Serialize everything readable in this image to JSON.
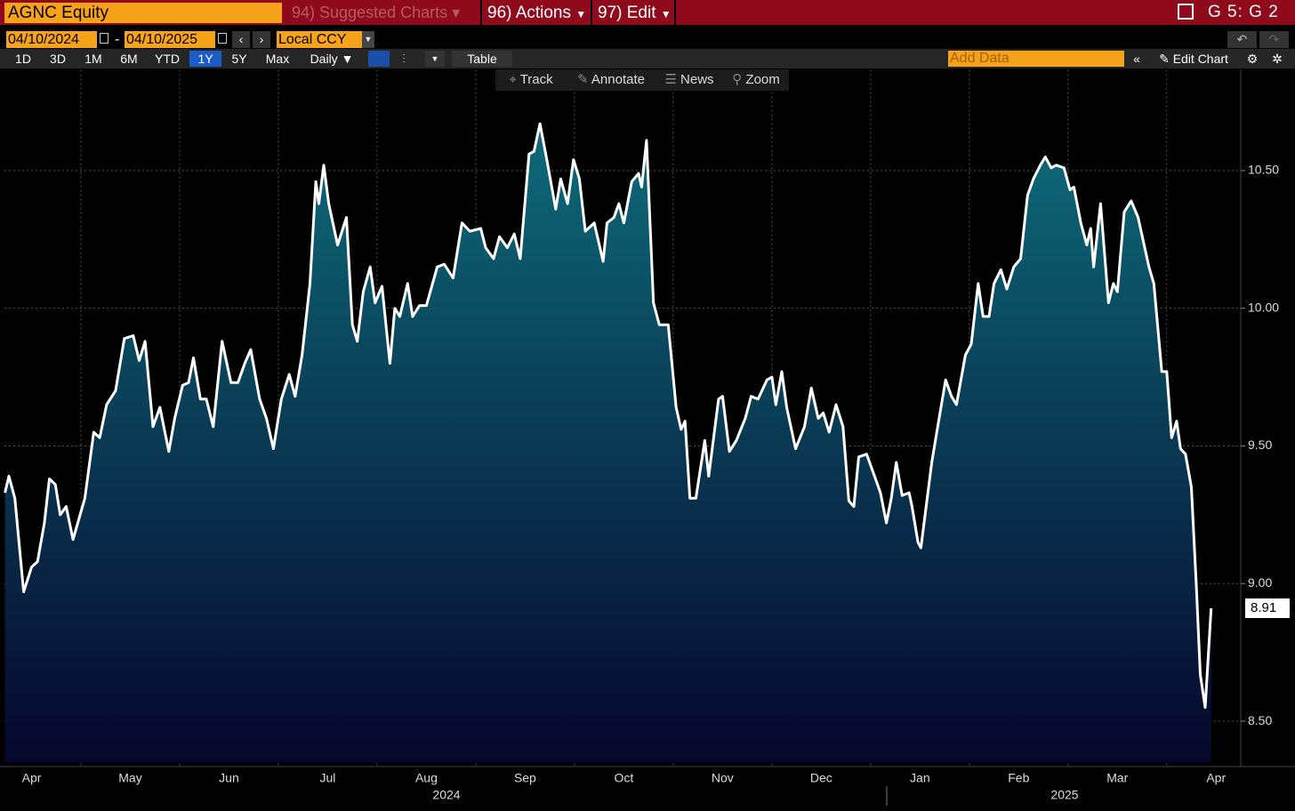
{
  "header": {
    "security": "AGNC Equity",
    "menu": [
      "94) Suggested Charts",
      "96) Actions",
      "97) Edit"
    ],
    "page_id": "G 5: G 2"
  },
  "controls": {
    "start_date": "04/10/2024",
    "separator": "-",
    "end_date": "04/10/2025",
    "currency": "Local CCY",
    "periods": [
      "1D",
      "3D",
      "1M",
      "6M",
      "YTD",
      "1Y",
      "5Y",
      "Max"
    ],
    "selected_period": "1Y",
    "frequency": "Daily",
    "table": "Table",
    "add_data": "Add Data",
    "edit_chart": "Edit Chart"
  },
  "tools": [
    "Track",
    "Annotate",
    "News",
    "Zoom"
  ],
  "chart_data": {
    "type": "area",
    "color": "#ffffff",
    "fill_top": "#0d6b79",
    "fill_bottom": "#06062c",
    "grid": true,
    "x": [
      0.23,
      0.27,
      0.33,
      0.42,
      0.5,
      0.56,
      0.63,
      0.68,
      0.74,
      0.79,
      0.85,
      0.92,
      1.04,
      1.13,
      1.19,
      1.26,
      1.35,
      1.44,
      1.53,
      1.59,
      1.65,
      1.73,
      1.8,
      1.89,
      1.95,
      2.03,
      2.09,
      2.14,
      2.21,
      2.27,
      2.34,
      2.43,
      2.52,
      2.59,
      2.66,
      2.72,
      2.81,
      2.88,
      2.95,
      3.03,
      3.11,
      3.17,
      3.24,
      3.32,
      3.38,
      3.41,
      3.46,
      3.51,
      3.6,
      3.69,
      3.75,
      3.8,
      3.86,
      3.93,
      3.98,
      4.05,
      4.13,
      4.18,
      4.23,
      4.31,
      4.36,
      4.43,
      4.5,
      4.61,
      4.68,
      4.77,
      4.86,
      4.94,
      5.05,
      5.1,
      5.18,
      5.24,
      5.32,
      5.39,
      5.45,
      5.54,
      5.59,
      5.65,
      5.72,
      5.81,
      5.86,
      5.93,
      5.99,
      6.05,
      6.11,
      6.2,
      6.29,
      6.33,
      6.4,
      6.45,
      6.5,
      6.58,
      6.65,
      6.68,
      6.73,
      6.8,
      6.86,
      6.95,
      7.03,
      7.08,
      7.12,
      7.17,
      7.23,
      7.32,
      7.36,
      7.46,
      7.5,
      7.57,
      7.64,
      7.73,
      7.79,
      7.86,
      7.95,
      8.0,
      8.04,
      8.1,
      8.15,
      8.24,
      8.33,
      8.4,
      8.47,
      8.52,
      8.58,
      8.65,
      8.72,
      8.78,
      8.83,
      8.88,
      8.96,
      9.05,
      9.1,
      9.16,
      9.21,
      9.26,
      9.32,
      9.39,
      9.42,
      9.48,
      9.51,
      9.62,
      9.68,
      9.76,
      9.82,
      9.87,
      9.96,
      10.02,
      10.09,
      10.14,
      10.2,
      10.25,
      10.32,
      10.38,
      10.45,
      10.52,
      10.59,
      10.65,
      10.72,
      10.77,
      10.83,
      10.88,
      10.96,
      11.02,
      11.06,
      11.13,
      11.19,
      11.23,
      11.26,
      11.33,
      11.41,
      11.46,
      11.5,
      11.57,
      11.64,
      11.71,
      11.82,
      11.87,
      11.95,
      12.0,
      12.05,
      12.1,
      12.14,
      12.19,
      12.25,
      12.3,
      12.34,
      12.39,
      12.45
    ],
    "values": [
      9.33,
      9.39,
      9.31,
      8.97,
      9.06,
      9.08,
      9.22,
      9.38,
      9.36,
      9.25,
      9.28,
      9.16,
      9.31,
      9.55,
      9.53,
      9.65,
      9.7,
      9.89,
      9.9,
      9.81,
      9.88,
      9.57,
      9.64,
      9.48,
      9.6,
      9.72,
      9.73,
      9.82,
      9.67,
      9.67,
      9.57,
      9.88,
      9.73,
      9.73,
      9.8,
      9.85,
      9.67,
      9.6,
      9.49,
      9.67,
      9.76,
      9.68,
      9.83,
      10.09,
      10.46,
      10.38,
      10.52,
      10.38,
      10.23,
      10.33,
      9.94,
      9.88,
      10.06,
      10.15,
      10.02,
      10.08,
      9.8,
      10.0,
      9.97,
      10.09,
      9.97,
      10.01,
      10.01,
      10.15,
      10.16,
      10.11,
      10.31,
      10.28,
      10.29,
      10.22,
      10.18,
      10.26,
      10.22,
      10.27,
      10.18,
      10.56,
      10.57,
      10.67,
      10.54,
      10.36,
      10.47,
      10.38,
      10.54,
      10.47,
      10.28,
      10.31,
      10.17,
      10.31,
      10.33,
      10.38,
      10.31,
      10.46,
      10.49,
      10.44,
      10.61,
      10.02,
      9.94,
      9.94,
      9.64,
      9.56,
      9.59,
      9.31,
      9.31,
      9.52,
      9.39,
      9.67,
      9.68,
      9.48,
      9.52,
      9.6,
      9.68,
      9.67,
      9.74,
      9.75,
      9.65,
      9.77,
      9.64,
      9.49,
      9.57,
      9.71,
      9.6,
      9.62,
      9.55,
      9.65,
      9.57,
      9.3,
      9.28,
      9.46,
      9.47,
      9.38,
      9.33,
      9.22,
      9.31,
      9.44,
      9.32,
      9.33,
      9.28,
      9.15,
      9.13,
      9.44,
      9.57,
      9.74,
      9.68,
      9.65,
      9.83,
      9.87,
      10.09,
      9.97,
      9.97,
      10.09,
      10.14,
      10.07,
      10.15,
      10.18,
      10.41,
      10.47,
      10.52,
      10.55,
      10.51,
      10.52,
      10.51,
      10.43,
      10.44,
      10.31,
      10.23,
      10.29,
      10.15,
      10.38,
      10.02,
      10.09,
      10.06,
      10.35,
      10.39,
      10.33,
      10.15,
      10.09,
      9.77,
      9.77,
      9.53,
      9.59,
      9.49,
      9.47,
      9.35,
      8.99,
      8.67,
      8.55,
      8.91
    ],
    "last_label": "8.91",
    "xlim": [
      0.225,
      12.75
    ],
    "xticks": [
      {
        "value": 0.5,
        "label": "Apr"
      },
      {
        "value": 1.5,
        "label": "May"
      },
      {
        "value": 2.5,
        "label": "Jun"
      },
      {
        "value": 3.5,
        "label": "Jul"
      },
      {
        "value": 4.5,
        "label": "Aug"
      },
      {
        "value": 5.5,
        "label": "Sep"
      },
      {
        "value": 6.5,
        "label": "Oct"
      },
      {
        "value": 7.5,
        "label": "Nov"
      },
      {
        "value": 8.5,
        "label": "Dec"
      },
      {
        "value": 9.5,
        "label": "Jan"
      },
      {
        "value": 10.5,
        "label": "Feb"
      },
      {
        "value": 11.5,
        "label": "Mar"
      },
      {
        "value": 12.5,
        "label": "Apr"
      }
    ],
    "years": [
      "2024",
      "2025"
    ],
    "ylim": [
      8.35,
      10.85
    ],
    "yticks": [
      {
        "value": 8.5,
        "label": "8.50"
      },
      {
        "value": 9,
        "label": "9.00"
      },
      {
        "value": 9.5,
        "label": "9.50"
      },
      {
        "value": 10,
        "label": "10.00"
      },
      {
        "value": 10.5,
        "label": "10.50"
      }
    ]
  }
}
